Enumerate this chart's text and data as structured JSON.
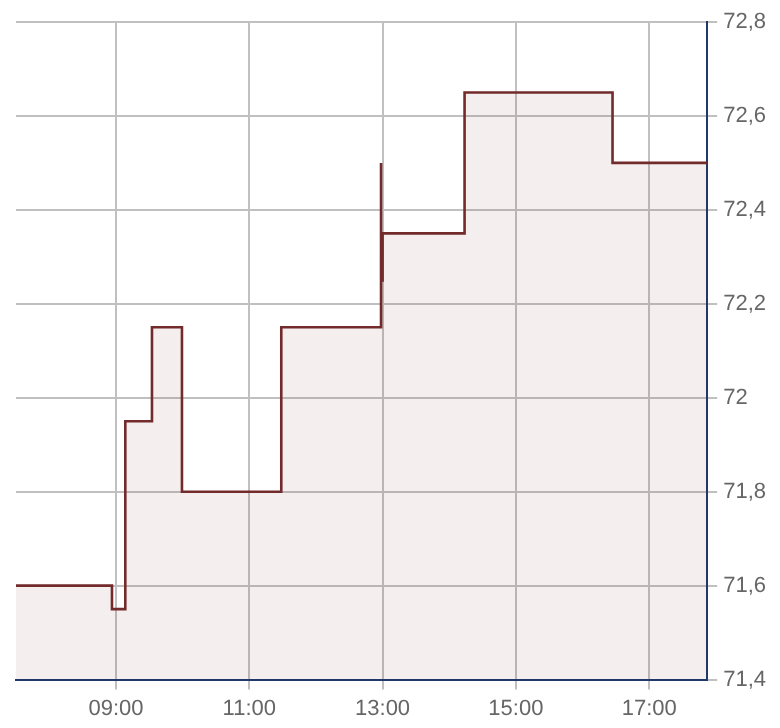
{
  "chart_data": {
    "type": "area",
    "x": [
      7.5,
      8.94,
      8.94,
      9.14,
      9.14,
      9.54,
      9.54,
      9.99,
      9.99,
      11.48,
      11.48,
      12.97,
      12.97,
      12.98,
      12.98,
      13.0,
      13.0,
      14.23,
      14.23,
      16.45,
      16.45,
      17.87
    ],
    "series": [
      {
        "color": "#722a2a",
        "values": [
          71.6,
          71.6,
          71.55,
          71.55,
          71.95,
          71.95,
          72.15,
          72.15,
          71.8,
          71.8,
          72.15,
          72.15,
          72.5,
          72.5,
          72.25,
          72.25,
          72.35,
          72.35,
          72.65,
          72.65,
          72.5,
          72.5
        ]
      }
    ],
    "xlim": [
      7.5,
      17.87
    ],
    "xticks": [
      {
        "value": 9,
        "label": "09:00"
      },
      {
        "value": 11,
        "label": "11:00"
      },
      {
        "value": 13,
        "label": "13:00"
      },
      {
        "value": 15,
        "label": "15:00"
      },
      {
        "value": 17,
        "label": "17:00"
      }
    ],
    "ylim": [
      71.4,
      72.8
    ],
    "yticks": [
      {
        "value": 71.4,
        "label": "71,4"
      },
      {
        "value": 71.6,
        "label": "71,6"
      },
      {
        "value": 71.8,
        "label": "71,8"
      },
      72,
      {
        "value": 72.2,
        "label": "72,2"
      },
      {
        "value": 72.4,
        "label": "72,4"
      },
      {
        "value": 72.6,
        "label": "72,6"
      },
      {
        "value": 72.8,
        "label": "72,8"
      }
    ],
    "grid": true,
    "legend": false
  }
}
